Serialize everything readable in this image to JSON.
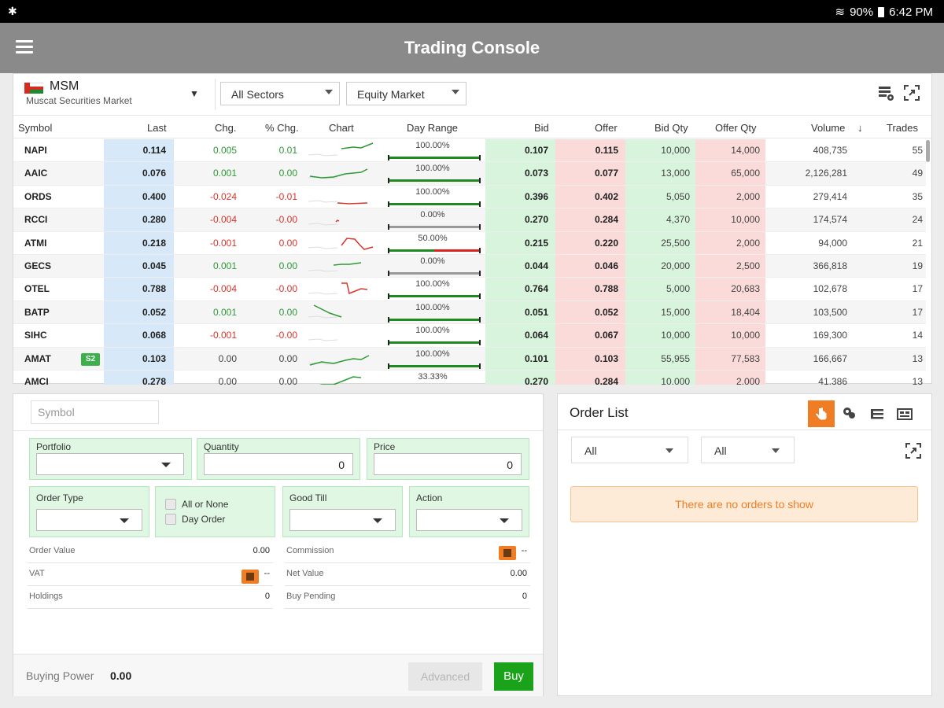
{
  "status_bar": {
    "battery": "90%",
    "time": "6:42 PM"
  },
  "app": {
    "title": "Trading Console"
  },
  "market": {
    "exchange_code": "MSM",
    "exchange_name": "Muscat Securities Market",
    "sector_filter": "All Sectors",
    "market_filter": "Equity Market",
    "columns": [
      "Symbol",
      "Last",
      "Chg.",
      "% Chg.",
      "Chart",
      "Day Range",
      "Bid",
      "Offer",
      "Bid Qty",
      "Offer Qty",
      "Volume",
      "Trades"
    ],
    "rows": [
      {
        "symbol": "NAPI",
        "last": "0.114",
        "chg": "0.005",
        "pct": "0.01",
        "dir": "pos",
        "range_pct": "100.00%",
        "range_fill": 1.0,
        "bid": "0.107",
        "offer": "0.115",
        "bid_qty": "10,000",
        "offer_qty": "14,000",
        "volume": "408,735",
        "trades": "55"
      },
      {
        "symbol": "AAIC",
        "last": "0.076",
        "chg": "0.001",
        "pct": "0.00",
        "dir": "pos",
        "range_pct": "100.00%",
        "range_fill": 1.0,
        "bid": "0.073",
        "offer": "0.077",
        "bid_qty": "13,000",
        "offer_qty": "65,000",
        "volume": "2,126,281",
        "trades": "49"
      },
      {
        "symbol": "ORDS",
        "last": "0.400",
        "chg": "-0.024",
        "pct": "-0.01",
        "dir": "neg",
        "range_pct": "100.00%",
        "range_fill": 1.0,
        "bid": "0.396",
        "offer": "0.402",
        "bid_qty": "5,050",
        "offer_qty": "2,000",
        "volume": "279,414",
        "trades": "35"
      },
      {
        "symbol": "RCCI",
        "last": "0.280",
        "chg": "-0.004",
        "pct": "-0.00",
        "dir": "neg",
        "range_pct": "0.00%",
        "range_fill": 0.0,
        "bid": "0.270",
        "offer": "0.284",
        "bid_qty": "4,370",
        "offer_qty": "10,000",
        "volume": "174,574",
        "trades": "24"
      },
      {
        "symbol": "ATMI",
        "last": "0.218",
        "chg": "-0.001",
        "pct": "0.00",
        "dir": "neg",
        "range_pct": "50.00%",
        "range_fill": 0.5,
        "bid": "0.215",
        "offer": "0.220",
        "bid_qty": "25,500",
        "offer_qty": "2,000",
        "volume": "94,000",
        "trades": "21"
      },
      {
        "symbol": "GECS",
        "last": "0.045",
        "chg": "0.001",
        "pct": "0.00",
        "dir": "pos",
        "range_pct": "0.00%",
        "range_fill": 0.0,
        "bid": "0.044",
        "offer": "0.046",
        "bid_qty": "20,000",
        "offer_qty": "2,500",
        "volume": "366,818",
        "trades": "19"
      },
      {
        "symbol": "OTEL",
        "last": "0.788",
        "chg": "-0.004",
        "pct": "-0.00",
        "dir": "neg",
        "range_pct": "100.00%",
        "range_fill": 1.0,
        "bid": "0.764",
        "offer": "0.788",
        "bid_qty": "5,000",
        "offer_qty": "20,683",
        "volume": "102,678",
        "trades": "17"
      },
      {
        "symbol": "BATP",
        "last": "0.052",
        "chg": "0.001",
        "pct": "0.00",
        "dir": "pos",
        "range_pct": "100.00%",
        "range_fill": 1.0,
        "bid": "0.051",
        "offer": "0.052",
        "bid_qty": "15,000",
        "offer_qty": "18,404",
        "volume": "103,500",
        "trades": "17"
      },
      {
        "symbol": "SIHC",
        "last": "0.068",
        "chg": "-0.001",
        "pct": "-0.00",
        "dir": "neg",
        "range_pct": "100.00%",
        "range_fill": 1.0,
        "bid": "0.064",
        "offer": "0.067",
        "bid_qty": "10,000",
        "offer_qty": "10,000",
        "volume": "169,300",
        "trades": "14"
      },
      {
        "symbol": "AMAT",
        "badge": "S2",
        "last": "0.103",
        "chg": "0.00",
        "pct": "0.00",
        "dir": "neu",
        "range_pct": "100.00%",
        "range_fill": 1.0,
        "bid": "0.101",
        "offer": "0.103",
        "bid_qty": "55,955",
        "offer_qty": "77,583",
        "volume": "166,667",
        "trades": "13"
      },
      {
        "symbol": "AMCI",
        "last": "0.278",
        "chg": "0.00",
        "pct": "0.00",
        "dir": "neu",
        "range_pct": "33.33%",
        "range_fill": 0.333,
        "bid": "0.270",
        "offer": "0.284",
        "bid_qty": "10,000",
        "offer_qty": "2,000",
        "volume": "41,386",
        "trades": "13"
      }
    ]
  },
  "order_entry": {
    "symbol_placeholder": "Symbol",
    "portfolio_label": "Portfolio",
    "quantity_label": "Quantity",
    "quantity_value": "0",
    "price_label": "Price",
    "price_value": "0",
    "order_type_label": "Order Type",
    "all_or_none_label": "All or None",
    "day_order_label": "Day Order",
    "good_till_label": "Good Till",
    "action_label": "Action",
    "order_value_label": "Order Value",
    "order_value": "0.00",
    "commission_label": "Commission",
    "commission_value": "--",
    "vat_label": "VAT",
    "vat_value": "--",
    "net_value_label": "Net Value",
    "net_value": "0.00",
    "holdings_label": "Holdings",
    "holdings_value": "0",
    "buy_pending_label": "Buy Pending",
    "buy_pending_value": "0",
    "buying_power_label": "Buying Power",
    "buying_power_value": "0.00",
    "advanced_label": "Advanced",
    "buy_label": "Buy"
  },
  "order_list": {
    "title": "Order List",
    "filter1": "All",
    "filter2": "All",
    "empty_message": "There are no orders to show"
  }
}
